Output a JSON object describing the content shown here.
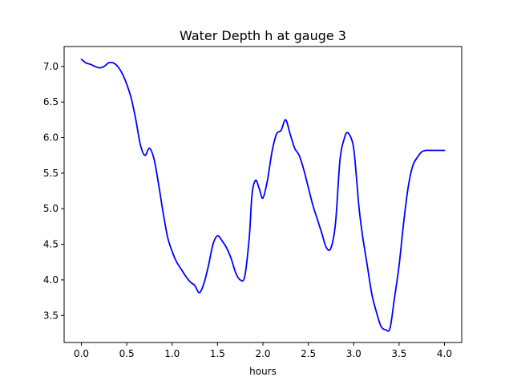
{
  "chart_data": {
    "type": "line",
    "title": "Water Depth h at gauge 3",
    "xlabel": "hours",
    "ylabel": "",
    "xlim": [
      -0.19,
      4.19
    ],
    "ylim": [
      3.12,
      7.28
    ],
    "xticks": [
      0.0,
      0.5,
      1.0,
      1.5,
      2.0,
      2.5,
      3.0,
      3.5,
      4.0
    ],
    "xtick_labels": [
      "0.0",
      "0.5",
      "1.0",
      "1.5",
      "2.0",
      "2.5",
      "3.0",
      "3.5",
      "4.0"
    ],
    "yticks": [
      3.5,
      4.0,
      4.5,
      5.0,
      5.5,
      6.0,
      6.5,
      7.0
    ],
    "ytick_labels": [
      "3.5",
      "4.0",
      "4.5",
      "5.0",
      "5.5",
      "6.0",
      "6.5",
      "7.0"
    ],
    "grid": false,
    "series": [
      {
        "color": "#0000ff",
        "x": [
          0.0,
          0.05,
          0.1,
          0.15,
          0.2,
          0.25,
          0.3,
          0.35,
          0.4,
          0.45,
          0.5,
          0.55,
          0.6,
          0.65,
          0.7,
          0.75,
          0.8,
          0.85,
          0.9,
          0.95,
          1.0,
          1.05,
          1.1,
          1.15,
          1.2,
          1.25,
          1.3,
          1.35,
          1.4,
          1.45,
          1.5,
          1.55,
          1.6,
          1.65,
          1.7,
          1.75,
          1.8,
          1.85,
          1.88,
          1.92,
          1.96,
          2.0,
          2.05,
          2.1,
          2.15,
          2.2,
          2.25,
          2.3,
          2.35,
          2.4,
          2.45,
          2.5,
          2.55,
          2.6,
          2.65,
          2.7,
          2.75,
          2.8,
          2.85,
          2.9,
          2.93,
          2.97,
          3.0,
          3.03,
          3.06,
          3.1,
          3.15,
          3.2,
          3.25,
          3.3,
          3.35,
          3.4,
          3.45,
          3.5,
          3.55,
          3.6,
          3.65,
          3.7,
          3.75,
          3.8,
          3.85,
          3.9,
          3.95,
          4.0
        ],
        "y": [
          7.1,
          7.05,
          7.03,
          7.0,
          6.98,
          7.0,
          7.05,
          7.05,
          7.0,
          6.9,
          6.75,
          6.55,
          6.25,
          5.9,
          5.75,
          5.85,
          5.7,
          5.35,
          4.95,
          4.6,
          4.4,
          4.25,
          4.15,
          4.05,
          3.97,
          3.92,
          3.82,
          3.95,
          4.2,
          4.5,
          4.62,
          4.55,
          4.45,
          4.3,
          4.1,
          4.0,
          4.05,
          4.6,
          5.2,
          5.4,
          5.28,
          5.15,
          5.4,
          5.8,
          6.05,
          6.1,
          6.25,
          6.05,
          5.85,
          5.75,
          5.55,
          5.3,
          5.05,
          4.85,
          4.65,
          4.45,
          4.45,
          4.8,
          5.7,
          6.0,
          6.07,
          6.0,
          5.85,
          5.45,
          5.0,
          4.6,
          4.2,
          3.8,
          3.55,
          3.35,
          3.3,
          3.32,
          3.75,
          4.2,
          4.8,
          5.3,
          5.6,
          5.72,
          5.8,
          5.82,
          5.82,
          5.82,
          5.82,
          5.82
        ]
      }
    ]
  }
}
